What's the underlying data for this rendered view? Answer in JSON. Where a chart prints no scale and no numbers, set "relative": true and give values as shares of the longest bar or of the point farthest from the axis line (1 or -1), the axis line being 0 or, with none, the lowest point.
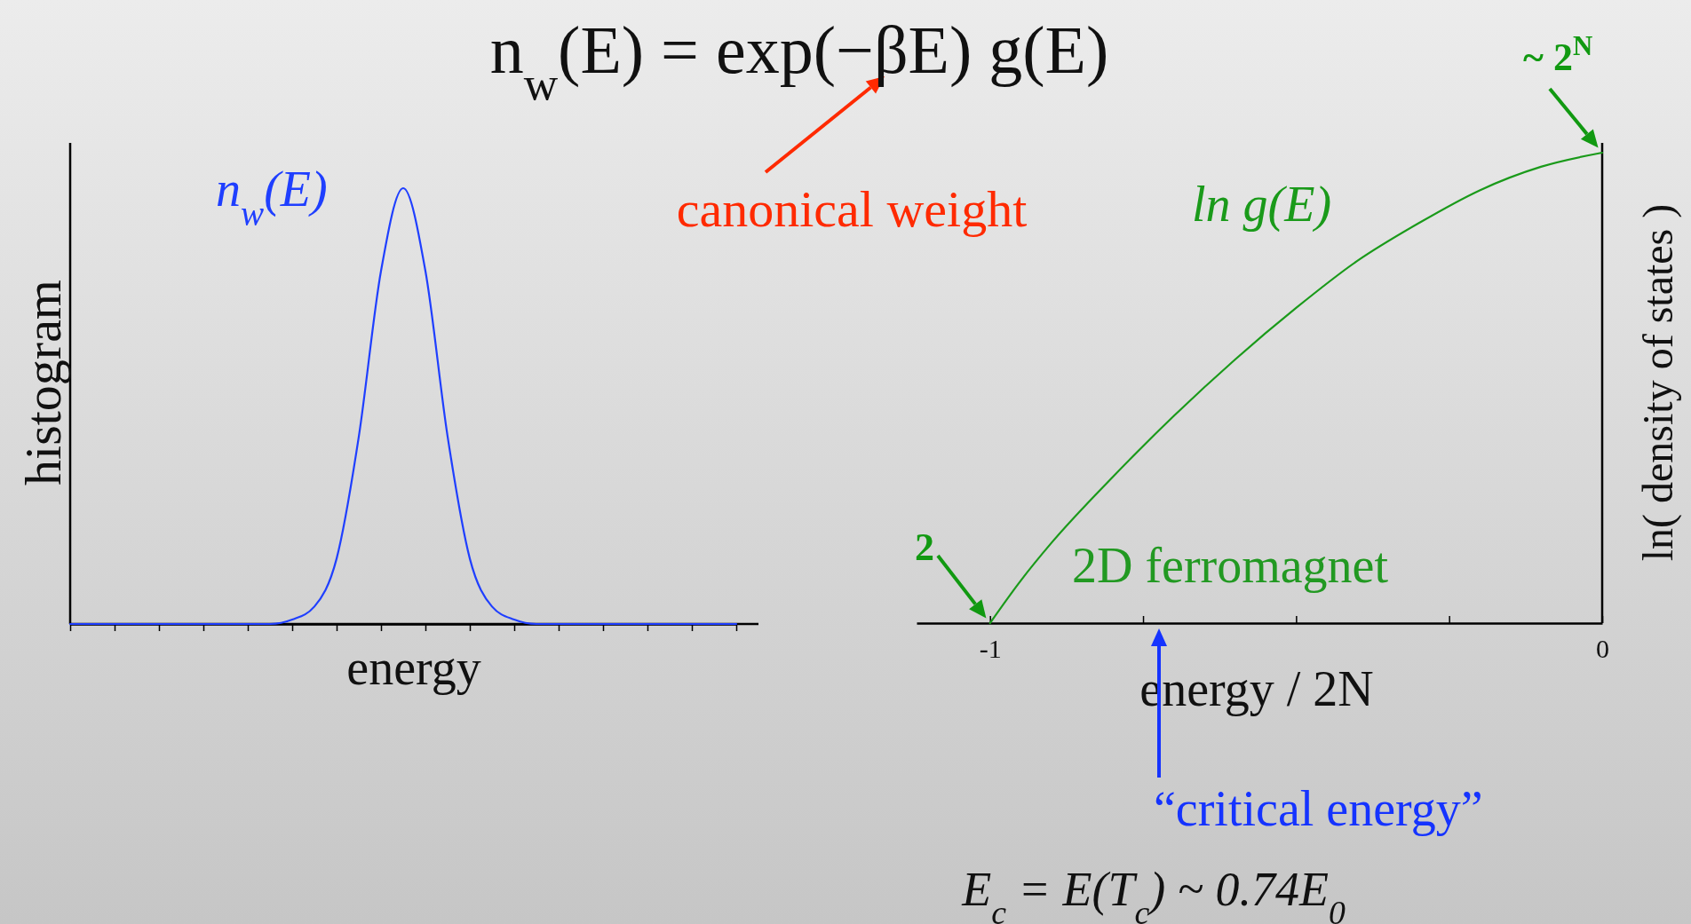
{
  "chart_data": [
    {
      "type": "line",
      "title": "n$_{w}$(E) = exp(−βE) g(E)",
      "xlabel": "energy",
      "ylabel": "histogram",
      "relative": true,
      "categories": [
        null,
        null,
        null,
        null,
        null,
        null,
        null,
        null,
        null,
        null,
        null,
        null,
        null,
        null,
        null,
        null,
        null,
        null,
        null,
        null,
        null,
        null,
        null,
        null,
        null,
        null,
        null,
        null,
        null,
        null,
        null
      ],
      "series": [
        {
          "name": "n$_{w}$(E)",
          "color": "#1f3fff",
          "values": [
            0,
            0,
            0,
            0,
            0,
            0,
            0,
            0,
            0,
            0,
            0.01,
            0.04,
            0.15,
            0.43,
            0.81,
            1,
            0.81,
            0.43,
            0.15,
            0.04,
            0.01,
            0,
            0,
            0,
            0,
            0,
            0,
            0,
            0,
            0,
            0
          ]
        }
      ],
      "annotations": [
        "canonical weight"
      ]
    },
    {
      "type": "line",
      "xlabel": "energy / 2N",
      "ylabel": "ln( density of states )",
      "relative": true,
      "xlim": [
        -1.12,
        0
      ],
      "xticks": [
        -1,
        {
          "value": -0.75,
          "label": null
        },
        {
          "value": -0.5,
          "label": null
        },
        {
          "value": -0.25,
          "label": null
        },
        0
      ],
      "x": [
        -1,
        -0.95,
        -0.9,
        -0.8,
        -0.7,
        -0.6,
        -0.5,
        -0.4,
        -0.3,
        -0.2,
        -0.1,
        0
      ],
      "series": [
        {
          "name": "ln g(E)",
          "color": "#1a9a1a",
          "values": [
            0,
            0.09,
            0.17,
            0.31,
            0.44,
            0.56,
            0.67,
            0.77,
            0.85,
            0.92,
            0.97,
            1
          ]
        }
      ],
      "annotations": [
        {
          "text": "2",
          "x": -1,
          "y": 0
        },
        {
          "text": "~ 2$^{N}$",
          "x": 0,
          "y": 1
        },
        "2D ferromagnet",
        "“critical energy”",
        "E$_{c}$ = E(T$_{c}$) ~ 0.74E$_{0}$"
      ]
    }
  ]
}
